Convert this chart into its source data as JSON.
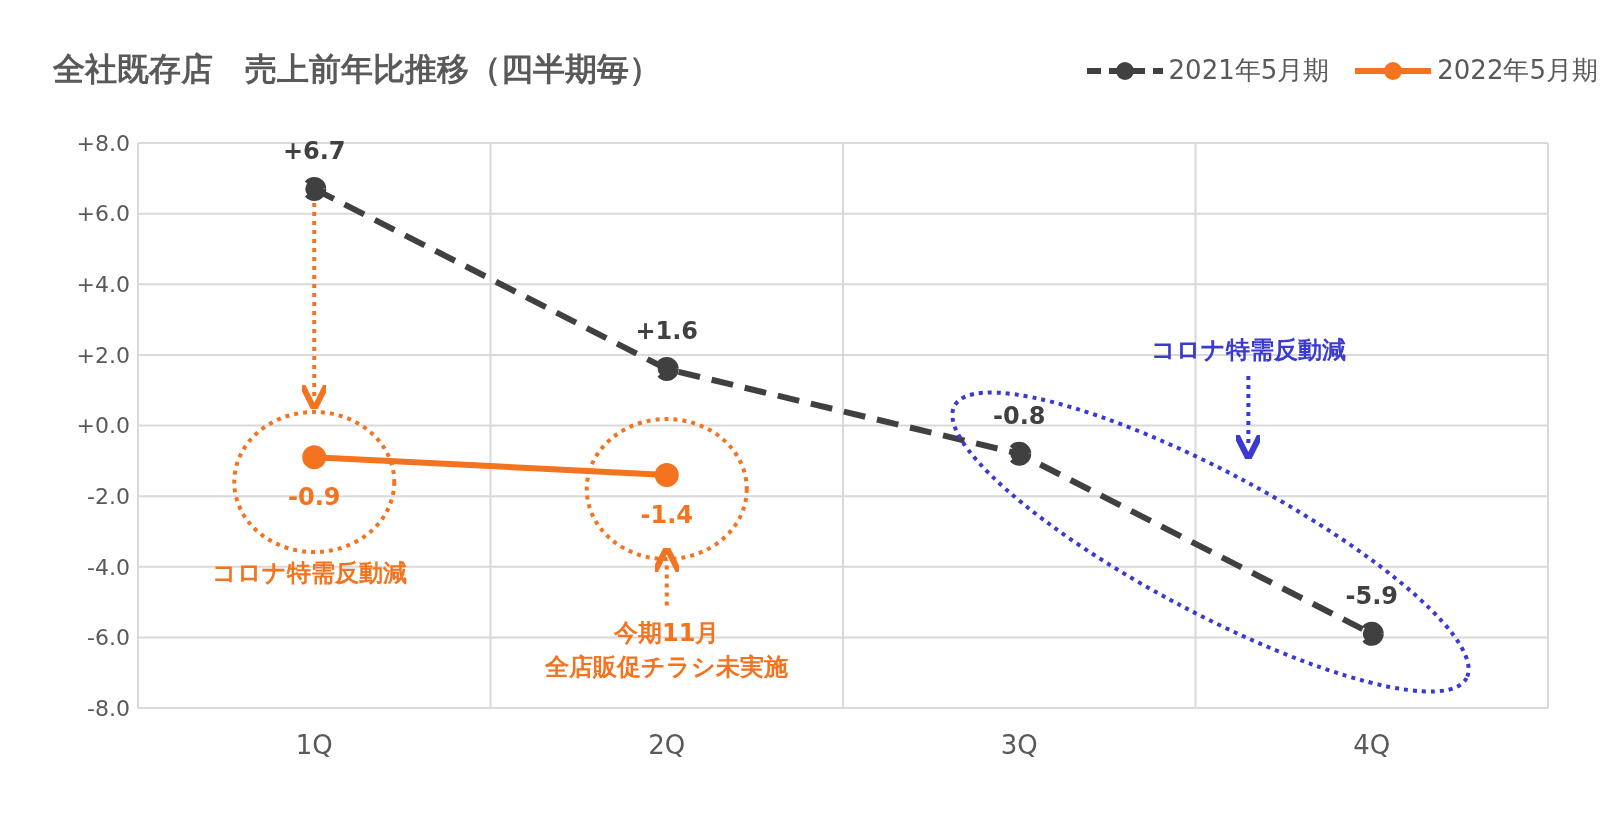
{
  "chart_data": {
    "type": "line",
    "title": "全社既存店　売上前年比推移（四半期毎）",
    "categories": [
      "1Q",
      "2Q",
      "3Q",
      "4Q"
    ],
    "series": [
      {
        "name": "2021年5月期",
        "color": "#404040",
        "line_style": "dashed",
        "values": [
          6.7,
          1.6,
          -0.8,
          -5.9
        ],
        "value_labels": [
          "+6.7",
          "+1.6",
          "-0.8",
          "-5.9"
        ]
      },
      {
        "name": "2022年5月期",
        "color": "#f4731f",
        "line_style": "solid",
        "values": [
          -0.9,
          -1.4,
          null,
          null
        ],
        "value_labels": [
          "-0.9",
          "-1.4",
          null,
          null
        ]
      }
    ],
    "ylim": [
      -8,
      8
    ],
    "yticks": [
      {
        "value": 8,
        "label": "+8.0"
      },
      {
        "value": 6,
        "label": "+6.0"
      },
      {
        "value": 4,
        "label": "+4.0"
      },
      {
        "value": 2,
        "label": "+2.0"
      },
      {
        "value": 0,
        "label": "+0.0"
      },
      {
        "value": -2,
        "label": "-2.0"
      },
      {
        "value": -4,
        "label": "-4.0"
      },
      {
        "value": -6,
        "label": "-6.0"
      },
      {
        "value": -8,
        "label": "-8.0"
      }
    ],
    "grid": true,
    "legend": "top right",
    "marker": "circle",
    "annotations": [
      "コロナ特需反動減",
      "今期11月",
      "全店販促チラシ未実施",
      "コロナ特需反動減"
    ]
  }
}
